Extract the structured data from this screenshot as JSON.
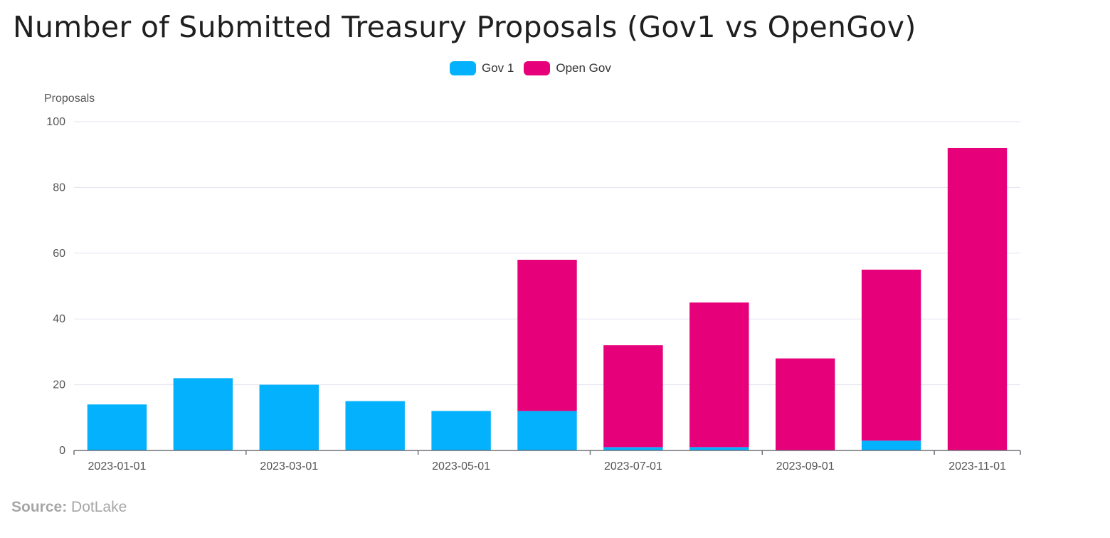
{
  "title": "Number of Submitted Treasury Proposals (Gov1 vs OpenGov)",
  "source": {
    "label": "Source:",
    "value": "DotLake"
  },
  "colors": {
    "gov1": "#04b1fc",
    "opengov": "#e6007a",
    "grid": "#e3e3f3",
    "axis": "#6e7079"
  },
  "chart_data": {
    "type": "bar",
    "stacked": true,
    "title": "Number of Submitted Treasury Proposals (Gov1 vs OpenGov)",
    "ylabel": "Proposals",
    "xlabel": "",
    "ylim": [
      0,
      100
    ],
    "yticks": [
      0,
      20,
      40,
      60,
      80,
      100
    ],
    "categories": [
      "2023-01-01",
      "2023-02-01",
      "2023-03-01",
      "2023-04-01",
      "2023-05-01",
      "2023-06-01",
      "2023-07-01",
      "2023-08-01",
      "2023-09-01",
      "2023-10-01",
      "2023-11-01"
    ],
    "xtick_labels": [
      "2023-01-01",
      "2023-03-01",
      "2023-05-01",
      "2023-07-01",
      "2023-09-01",
      "2023-11-01"
    ],
    "series": [
      {
        "name": "Gov 1",
        "color": "#04b1fc",
        "values": [
          14,
          22,
          20,
          15,
          12,
          12,
          1,
          1,
          0,
          3,
          0
        ]
      },
      {
        "name": "Open Gov",
        "color": "#e6007a",
        "values": [
          0,
          0,
          0,
          0,
          0,
          46,
          31,
          44,
          28,
          52,
          92
        ]
      }
    ],
    "legend": "top-center",
    "grid": true
  }
}
